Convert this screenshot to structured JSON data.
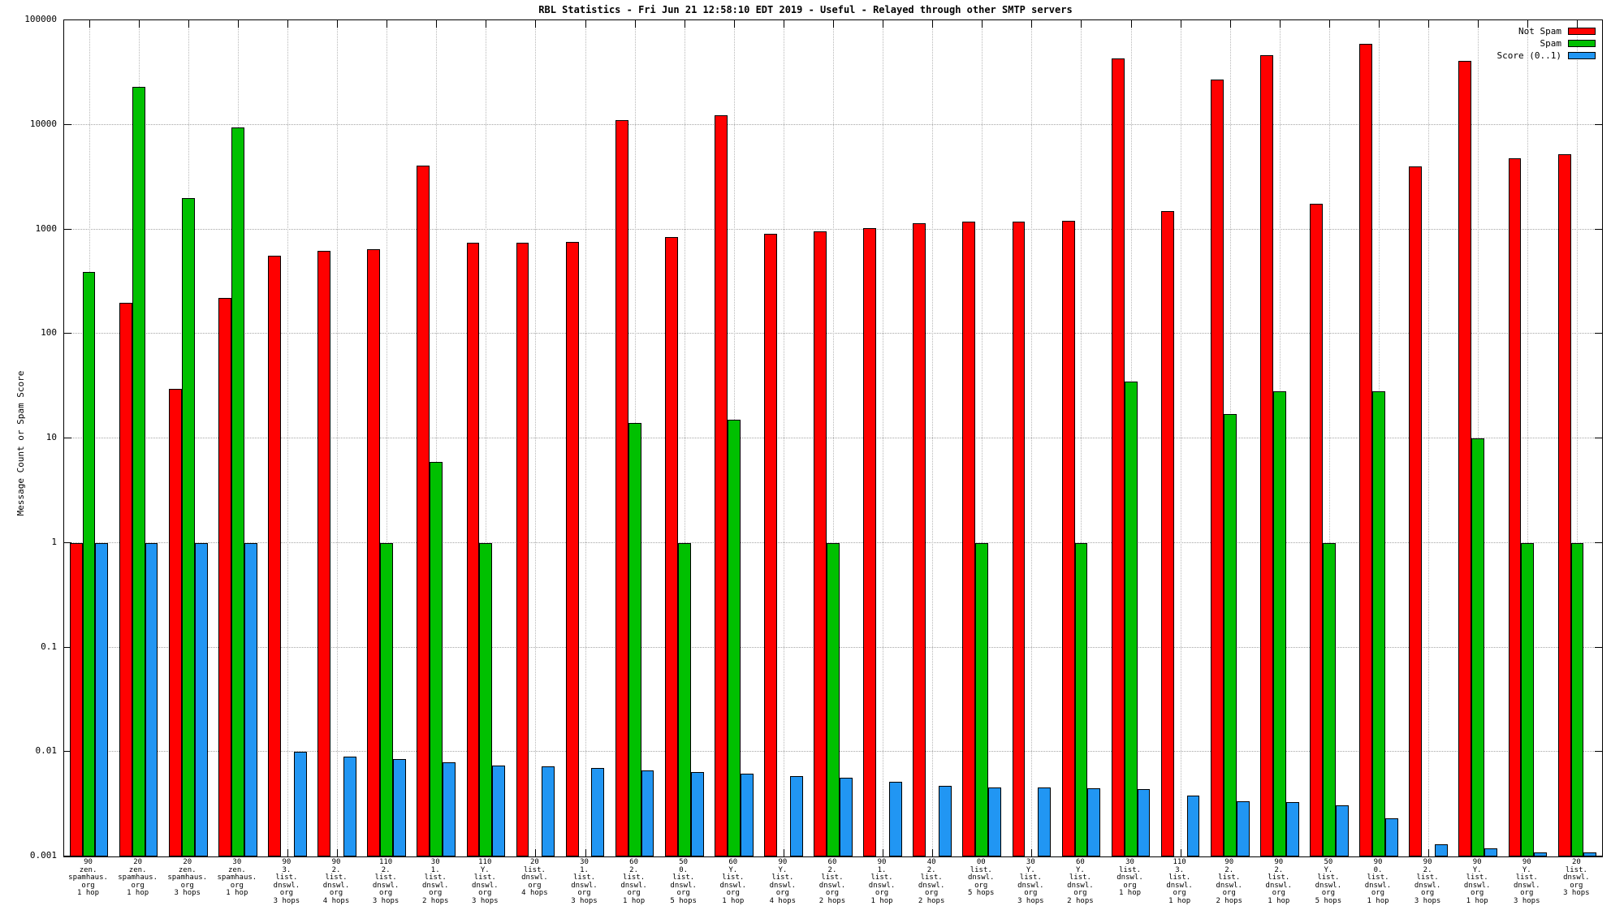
{
  "title": "RBL Statistics - Fri Jun 21 12:58:10 EDT 2019 - Useful - Relayed through other SMTP servers",
  "ylabel": "Message Count or Spam Score",
  "legend": [
    {
      "label": "Not Spam",
      "color": "#ff0000"
    },
    {
      "label": "Spam",
      "color": "#00c000"
    },
    {
      "label": "Score (0..1)",
      "color": "#2196f3"
    }
  ],
  "chart_data": {
    "type": "bar",
    "yscale": "log",
    "ylim": [
      0.001,
      100000
    ],
    "yticks": [
      "0.001",
      "0.01",
      "0.1",
      "1",
      "10",
      "100",
      "1000",
      "10000",
      "100000"
    ],
    "grid": true,
    "legend_position": "top-right",
    "categories": [
      "90\nzen.\nspamhaus.\norg\n1 hop",
      "20\nzen.\nspamhaus.\norg\n1 hop",
      "20\nzen.\nspamhaus.\norg\n3 hops",
      "30\nzen.\nspamhaus.\norg\n1 hop",
      "90\n3.\nlist.\ndnswl.\norg\n3 hops",
      "90\n2.\nlist.\ndnswl.\norg\n4 hops",
      "110\n2.\nlist.\ndnswl.\norg\n3 hops",
      "30\n1.\nlist.\ndnswl.\norg\n2 hops",
      "110\nY.\nlist.\ndnswl.\norg\n3 hops",
      "20\nlist.\ndnswl.\norg\n4 hops",
      "30\n1.\nlist.\ndnswl.\norg\n3 hops",
      "60\n2.\nlist.\ndnswl.\norg\n1 hop",
      "50\n0.\nlist.\ndnswl.\norg\n5 hops",
      "60\nY.\nlist.\ndnswl.\norg\n1 hop",
      "90\nY.\nlist.\ndnswl.\norg\n4 hops",
      "60\n2.\nlist.\ndnswl.\norg\n2 hops",
      "90\n1.\nlist.\ndnswl.\norg\n1 hop",
      "40\n2.\nlist.\ndnswl.\norg\n2 hops",
      "00\nlist.\ndnswl.\norg\n5 hops",
      "30\nY.\nlist.\ndnswl.\norg\n3 hops",
      "60\nY.\nlist.\ndnswl.\norg\n2 hops",
      "30\nlist.\ndnswl.\norg\n1 hop",
      "110\n3.\nlist.\ndnswl.\norg\n1 hop",
      "90\n2.\nlist.\ndnswl.\norg\n2 hops",
      "90\n2.\nlist.\ndnswl.\norg\n1 hop",
      "50\nY.\nlist.\ndnswl.\norg\n5 hops",
      "90\n0.\nlist.\ndnswl.\norg\n1 hop",
      "90\n2.\nlist.\ndnswl.\norg\n3 hops",
      "90\nY.\nlist.\ndnswl.\norg\n1 hop",
      "90\nY.\nlist.\ndnswl.\norg\n3 hops",
      "20\nlist.\ndnswl.\norg\n3 hops"
    ],
    "series": [
      {
        "name": "Not Spam",
        "color": "#ff0000",
        "values": [
          1,
          200,
          30,
          220,
          560,
          620,
          650,
          4100,
          750,
          750,
          760,
          11000,
          840,
          12300,
          910,
          950,
          1030,
          1150,
          1180,
          1180,
          1200,
          43000,
          1500,
          27000,
          46000,
          1750,
          60000,
          4000,
          41000,
          4800,
          5200
        ]
      },
      {
        "name": "Spam",
        "color": "#00c000",
        "values": [
          390,
          23000,
          2000,
          9500,
          null,
          null,
          1,
          6,
          1,
          null,
          null,
          14,
          1,
          15,
          null,
          1,
          null,
          null,
          1,
          null,
          1,
          35,
          null,
          17,
          28,
          1,
          28,
          null,
          10,
          1,
          1
        ]
      },
      {
        "name": "Score (0..1)",
        "color": "#2196f3",
        "values": [
          1,
          1,
          1,
          1,
          0.01,
          0.009,
          0.0085,
          0.008,
          0.0074,
          0.0073,
          0.007,
          0.0066,
          0.0064,
          0.0062,
          0.0059,
          0.0057,
          0.0052,
          0.0047,
          0.0046,
          0.0046,
          0.0045,
          0.0044,
          0.0038,
          0.0034,
          0.0033,
          0.0031,
          0.0023,
          0.0013,
          0.0012,
          0.0011,
          0.0011
        ]
      }
    ]
  }
}
